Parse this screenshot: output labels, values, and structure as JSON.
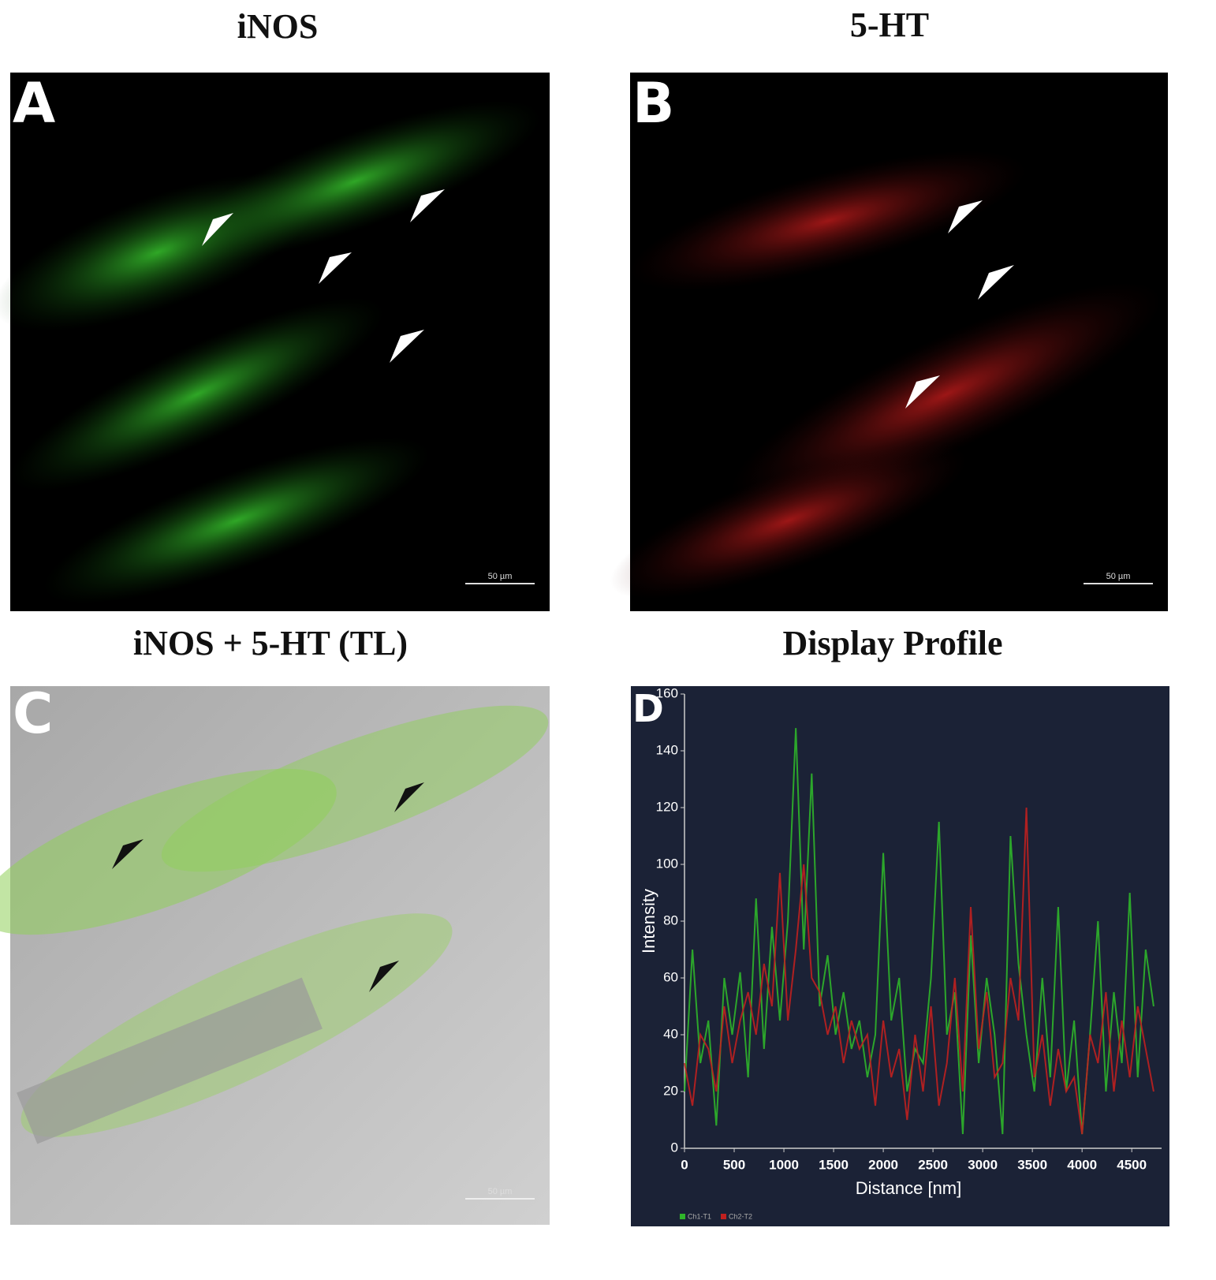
{
  "panels": [
    {
      "letter": "A",
      "title": "iNOS",
      "scale_bar": "50 µm"
    },
    {
      "letter": "B",
      "title": "5-HT",
      "scale_bar": "50 µm"
    },
    {
      "letter": "C",
      "title": "iNOS + 5-HT (TL)",
      "scale_bar": "50 µm"
    },
    {
      "letter": "D",
      "title": "Display Profile"
    }
  ],
  "chart_data": {
    "type": "line",
    "x_label": "Distance [nm]",
    "y_label": "Intensity",
    "xlim": [
      0,
      4800
    ],
    "ylim": [
      0,
      160
    ],
    "xticks": [
      0,
      500,
      1000,
      1500,
      2000,
      2500,
      3000,
      3500,
      4000,
      4500
    ],
    "yticks": [
      0,
      20,
      40,
      60,
      80,
      100,
      120,
      140,
      160
    ],
    "x": [
      0,
      80,
      160,
      240,
      320,
      400,
      480,
      560,
      640,
      720,
      800,
      880,
      960,
      1040,
      1120,
      1200,
      1280,
      1360,
      1440,
      1520,
      1600,
      1680,
      1760,
      1840,
      1920,
      2000,
      2080,
      2160,
      2240,
      2320,
      2400,
      2480,
      2560,
      2640,
      2720,
      2800,
      2880,
      2960,
      3040,
      3120,
      3200,
      3280,
      3360,
      3440,
      3520,
      3600,
      3680,
      3760,
      3840,
      3920,
      4000,
      4080,
      4160,
      4240,
      4320,
      4400,
      4480,
      4560,
      4640,
      4720
    ],
    "series": [
      {
        "name": "Ch1-T1",
        "color": "#2fb52a",
        "values": [
          20,
          70,
          30,
          45,
          8,
          60,
          40,
          62,
          25,
          88,
          35,
          78,
          45,
          80,
          148,
          70,
          132,
          50,
          68,
          40,
          55,
          35,
          45,
          25,
          40,
          104,
          45,
          60,
          20,
          35,
          30,
          60,
          115,
          40,
          55,
          5,
          75,
          30,
          60,
          40,
          5,
          110,
          65,
          40,
          20,
          60,
          25,
          85,
          20,
          45,
          5,
          40,
          80,
          20,
          55,
          30,
          90,
          25,
          70,
          50
        ]
      },
      {
        "name": "Ch2-T2",
        "color": "#c0201f",
        "values": [
          30,
          15,
          40,
          35,
          20,
          50,
          30,
          45,
          55,
          40,
          65,
          50,
          97,
          45,
          70,
          100,
          60,
          55,
          40,
          50,
          30,
          45,
          35,
          40,
          15,
          45,
          25,
          35,
          10,
          40,
          20,
          50,
          15,
          30,
          60,
          20,
          85,
          35,
          55,
          25,
          30,
          60,
          45,
          120,
          25,
          40,
          15,
          35,
          20,
          25,
          5,
          40,
          30,
          55,
          20,
          45,
          25,
          50,
          35,
          20
        ]
      }
    ]
  }
}
